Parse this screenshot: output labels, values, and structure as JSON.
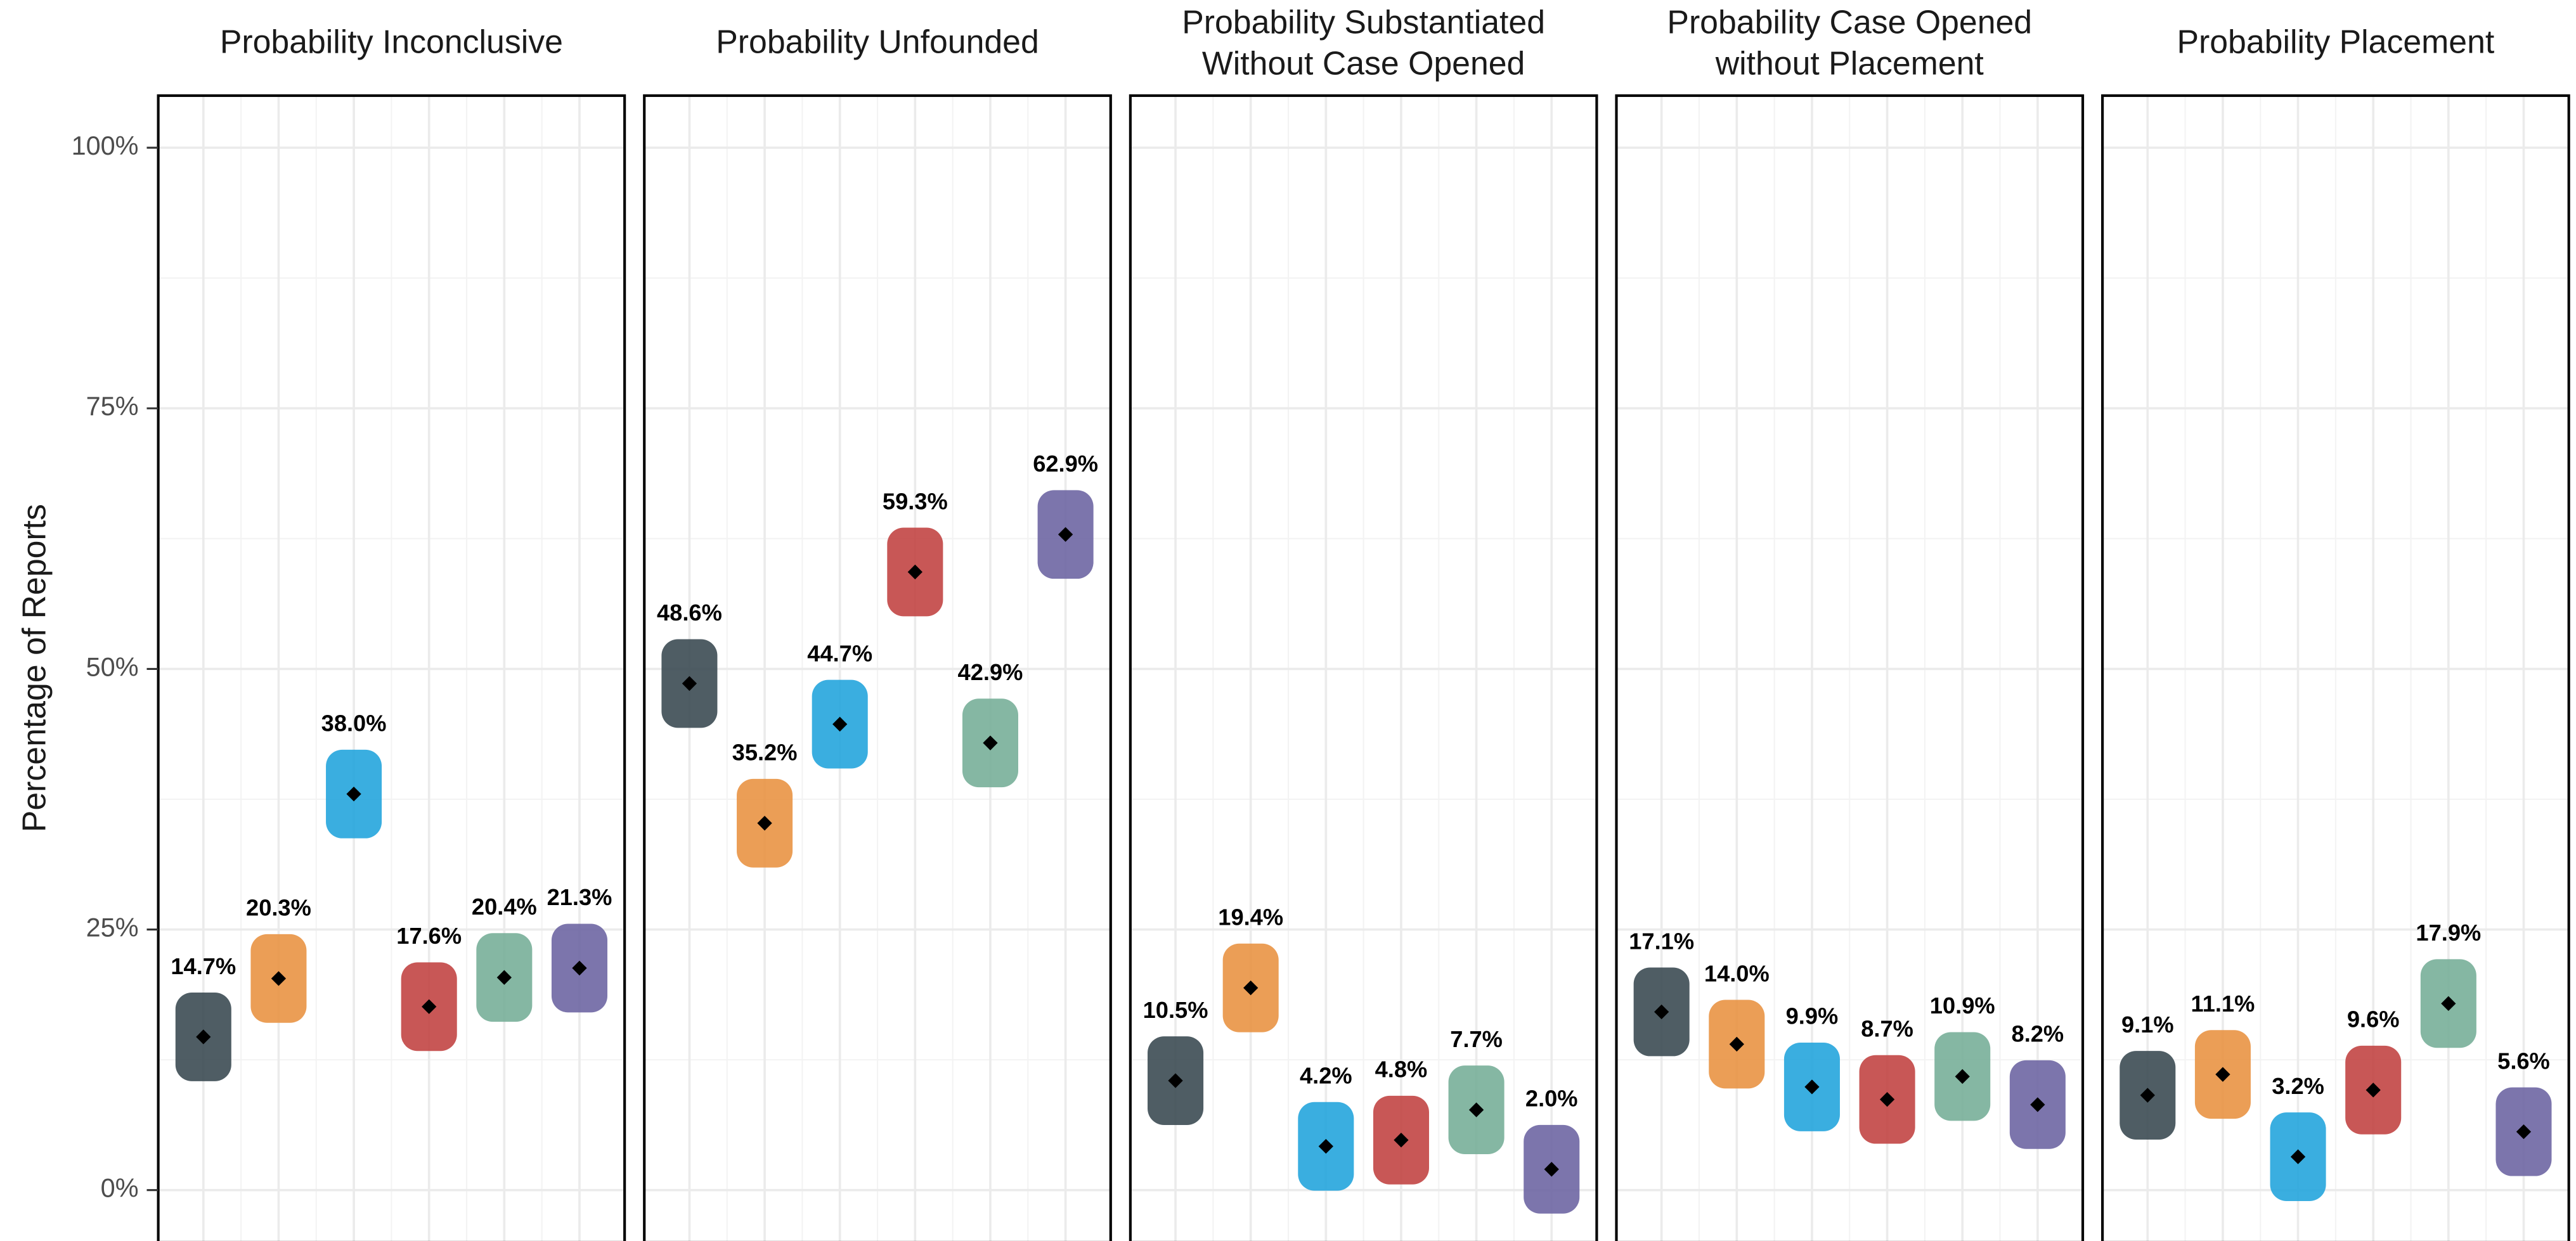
{
  "chart_data": [
    {
      "type": "strip",
      "title": "Probability Inconclusive",
      "ylabel": "Percentage of Reports",
      "values": [
        14.7,
        20.3,
        38.0,
        17.6,
        20.4,
        21.3
      ],
      "value_labels": [
        "14.7%",
        "20.3%",
        "38.0%",
        "17.6%",
        "20.4%",
        "21.3%"
      ],
      "colors": [
        "#37474f",
        "#e8913f",
        "#1fa3dc",
        "#c0403f",
        "#74ad96",
        "#6a62a0"
      ],
      "ylim": [
        -5,
        105
      ],
      "yticks": [
        {
          "value": 0,
          "label": "0%"
        },
        {
          "value": 25,
          "label": "25%"
        },
        {
          "value": 50,
          "label": "50%"
        },
        {
          "value": 75,
          "label": "75%"
        },
        {
          "value": 100,
          "label": "100%"
        }
      ],
      "grid": true
    },
    {
      "type": "strip",
      "title": "Probability Unfounded",
      "values": [
        48.6,
        35.2,
        44.7,
        59.3,
        42.9,
        62.9
      ],
      "value_labels": [
        "48.6%",
        "35.2%",
        "44.7%",
        "59.3%",
        "42.9%",
        "62.9%"
      ],
      "colors": [
        "#37474f",
        "#e8913f",
        "#1fa3dc",
        "#c0403f",
        "#74ad96",
        "#6a62a0"
      ],
      "ylim": [
        -5,
        105
      ],
      "yticks": [
        {
          "value": 0,
          "label": "0%"
        },
        {
          "value": 25,
          "label": "25%"
        },
        {
          "value": 50,
          "label": "50%"
        },
        {
          "value": 75,
          "label": "75%"
        },
        {
          "value": 100,
          "label": "100%"
        }
      ],
      "grid": true
    },
    {
      "type": "strip",
      "title": [
        "Probability Substantiated",
        "Without Case Opened"
      ],
      "values": [
        10.5,
        19.4,
        4.2,
        4.8,
        7.7,
        2.0
      ],
      "value_labels": [
        "10.5%",
        "19.4%",
        "4.2%",
        "4.8%",
        "7.7%",
        "2.0%"
      ],
      "colors": [
        "#37474f",
        "#e8913f",
        "#1fa3dc",
        "#c0403f",
        "#74ad96",
        "#6a62a0"
      ],
      "ylim": [
        -5,
        105
      ],
      "yticks": [
        {
          "value": 0,
          "label": "0%"
        },
        {
          "value": 25,
          "label": "25%"
        },
        {
          "value": 50,
          "label": "50%"
        },
        {
          "value": 75,
          "label": "75%"
        },
        {
          "value": 100,
          "label": "100%"
        }
      ],
      "grid": true
    },
    {
      "type": "strip",
      "title": [
        "Probability Case Opened",
        "without Placement"
      ],
      "values": [
        17.1,
        14.0,
        9.9,
        8.7,
        10.9,
        8.2
      ],
      "value_labels": [
        "17.1%",
        "14.0%",
        "9.9%",
        "8.7%",
        "10.9%",
        "8.2%"
      ],
      "colors": [
        "#37474f",
        "#e8913f",
        "#1fa3dc",
        "#c0403f",
        "#74ad96",
        "#6a62a0"
      ],
      "ylim": [
        -5,
        105
      ],
      "yticks": [
        {
          "value": 0,
          "label": "0%"
        },
        {
          "value": 25,
          "label": "25%"
        },
        {
          "value": 50,
          "label": "50%"
        },
        {
          "value": 75,
          "label": "75%"
        },
        {
          "value": 100,
          "label": "100%"
        }
      ],
      "grid": true
    },
    {
      "type": "strip",
      "title": "Probability Placement",
      "values": [
        9.1,
        11.1,
        3.2,
        9.6,
        17.9,
        5.6
      ],
      "value_labels": [
        "9.1%",
        "11.1%",
        "3.2%",
        "9.6%",
        "17.9%",
        "5.6%"
      ],
      "colors": [
        "#37474f",
        "#e8913f",
        "#1fa3dc",
        "#c0403f",
        "#74ad96",
        "#6a62a0"
      ],
      "ylim": [
        -5,
        105
      ],
      "yticks": [
        {
          "value": 0,
          "label": "0%"
        },
        {
          "value": 25,
          "label": "25%"
        },
        {
          "value": 50,
          "label": "50%"
        },
        {
          "value": 75,
          "label": "75%"
        },
        {
          "value": 100,
          "label": "100%"
        }
      ],
      "grid": true
    }
  ]
}
